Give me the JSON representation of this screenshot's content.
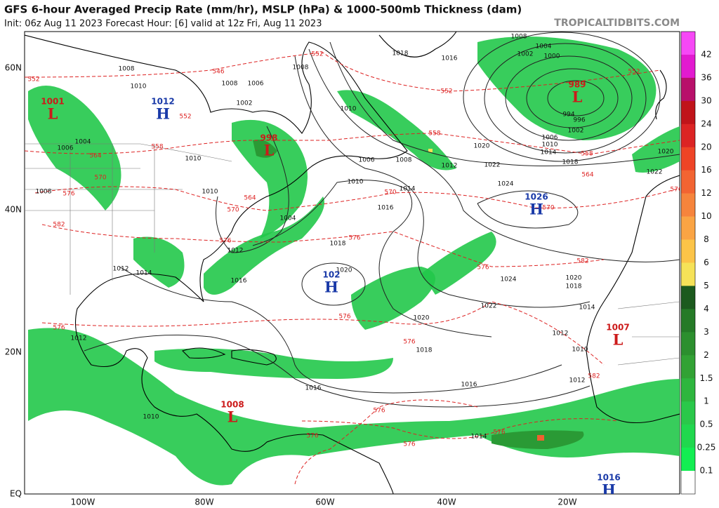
{
  "header": {
    "title": "GFS 6-hour Averaged Precip Rate (mm/hr), MSLP (hPa) & 1000-500mb Thickness (dam)",
    "subtitle": "Init: 06z Aug 11 2023   Forecast Hour: [6]   valid at 12z Fri, Aug 11 2023",
    "site": "TROPICALTIDBITS.COM"
  },
  "axes": {
    "lat_labels": [
      "60N",
      "40N",
      "20N",
      "EQ"
    ],
    "lon_labels": [
      "100W",
      "80W",
      "60W",
      "40W",
      "20W"
    ]
  },
  "colorbar": {
    "labels": [
      "42",
      "36",
      "30",
      "24",
      "20",
      "16",
      "12",
      "10",
      "8",
      "6",
      "5",
      "4",
      "3",
      "2",
      "1.5",
      "1",
      "0.5",
      "0.25",
      "0.1"
    ],
    "colors": [
      "#f648f6",
      "#e21ad0",
      "#b8106a",
      "#c0141a",
      "#dc2424",
      "#ee4426",
      "#f26432",
      "#f6843c",
      "#faa444",
      "#fcc448",
      "#f6e258",
      "#1c5a1e",
      "#257a27",
      "#2c8f2e",
      "#32a234",
      "#2eb63e",
      "#2ac84a",
      "#20d84e",
      "#12ee52",
      "#ffffff"
    ]
  },
  "centers": [
    {
      "letter": "L",
      "value": "1001"
    },
    {
      "letter": "H",
      "value": "1012"
    },
    {
      "letter": "L",
      "value": "998"
    },
    {
      "letter": "H",
      "value": "102"
    },
    {
      "letter": "H",
      "value": "1026"
    },
    {
      "letter": "L",
      "value": "989"
    },
    {
      "letter": "L",
      "value": "1007"
    },
    {
      "letter": "L",
      "value": "1008"
    },
    {
      "letter": "H",
      "value": "1016"
    }
  ],
  "isobar_labels": [
    "1008",
    "1010",
    "1008",
    "1006",
    "1002",
    "1008",
    "1010",
    "1004",
    "1006",
    "1010",
    "1008",
    "1010",
    "1004",
    "1012",
    "1018",
    "1016",
    "1014",
    "1010",
    "1006",
    "1008",
    "1012",
    "1020",
    "1022",
    "1024",
    "1020",
    "1016",
    "1014",
    "1012",
    "1018",
    "1020",
    "1016",
    "1016",
    "1024",
    "1022",
    "1020",
    "1018",
    "1014",
    "1012",
    "1010",
    "1012",
    "1014",
    "1018",
    "1016",
    "1008",
    "1004",
    "1002",
    "1000",
    "994",
    "996",
    "1002",
    "1006",
    "1010",
    "1014",
    "1018",
    "1020",
    "1022",
    "1010",
    "1012"
  ],
  "thickness_labels": [
    "552",
    "546",
    "552",
    "552",
    "558",
    "564",
    "570",
    "576",
    "582",
    "564",
    "570",
    "576",
    "570",
    "576",
    "558",
    "552",
    "552",
    "558",
    "564",
    "570",
    "576",
    "576",
    "582",
    "576",
    "576",
    "582",
    "576",
    "576",
    "576",
    "576",
    "576"
  ]
}
